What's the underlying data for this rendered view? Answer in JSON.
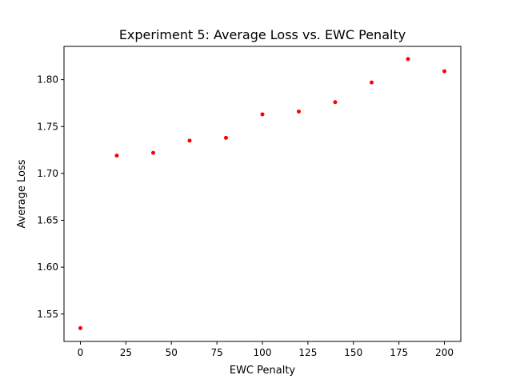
{
  "chart_data": {
    "type": "scatter",
    "title": "Experiment 5: Average Loss vs. EWC Penalty",
    "xlabel": "EWC Penalty",
    "ylabel": "Average Loss",
    "xlim": [
      -9,
      209
    ],
    "ylim": [
      1.5208,
      1.8355
    ],
    "xticks": [
      0,
      25,
      50,
      75,
      100,
      125,
      150,
      175,
      200
    ],
    "yticks": [
      1.55,
      1.6,
      1.65,
      1.7,
      1.75,
      1.8
    ],
    "xtick_labels": [
      "0",
      "25",
      "50",
      "75",
      "100",
      "125",
      "150",
      "175",
      "200"
    ],
    "ytick_labels": [
      "1.55",
      "1.60",
      "1.65",
      "1.70",
      "1.75",
      "1.80"
    ],
    "grid": false,
    "marker_color": "#ff0000",
    "x": [
      0,
      20,
      40,
      60,
      80,
      100,
      120,
      140,
      160,
      180,
      200
    ],
    "y": [
      1.535,
      1.719,
      1.722,
      1.735,
      1.738,
      1.763,
      1.766,
      1.776,
      1.797,
      1.822,
      1.809
    ]
  }
}
